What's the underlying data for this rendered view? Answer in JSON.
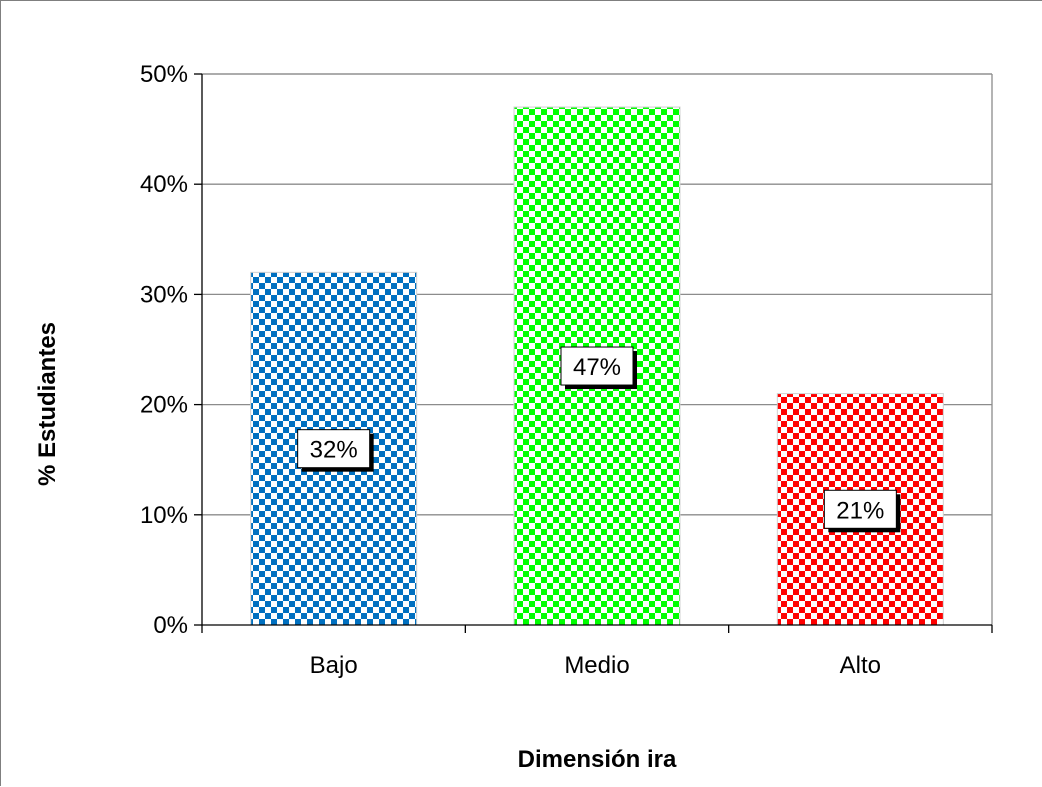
{
  "chart_data": {
    "type": "bar",
    "title": "",
    "xlabel": "Dimensión ira",
    "ylabel": "% Estudiantes",
    "categories": [
      "Bajo",
      "Medio",
      "Alto"
    ],
    "values": [
      32,
      47,
      21
    ],
    "data_labels": [
      "32%",
      "47%",
      "21%"
    ],
    "ylim": [
      0,
      50
    ],
    "yticks": [
      0,
      10,
      20,
      30,
      40,
      50
    ],
    "ytick_labels": [
      "0%",
      "10%",
      "20%",
      "30%",
      "40%",
      "50%"
    ],
    "grid": true,
    "legend": "none",
    "bar_colors": [
      "#0070c0",
      "#00ff00",
      "#ff0000"
    ],
    "bar_pattern": "checkerboard"
  }
}
